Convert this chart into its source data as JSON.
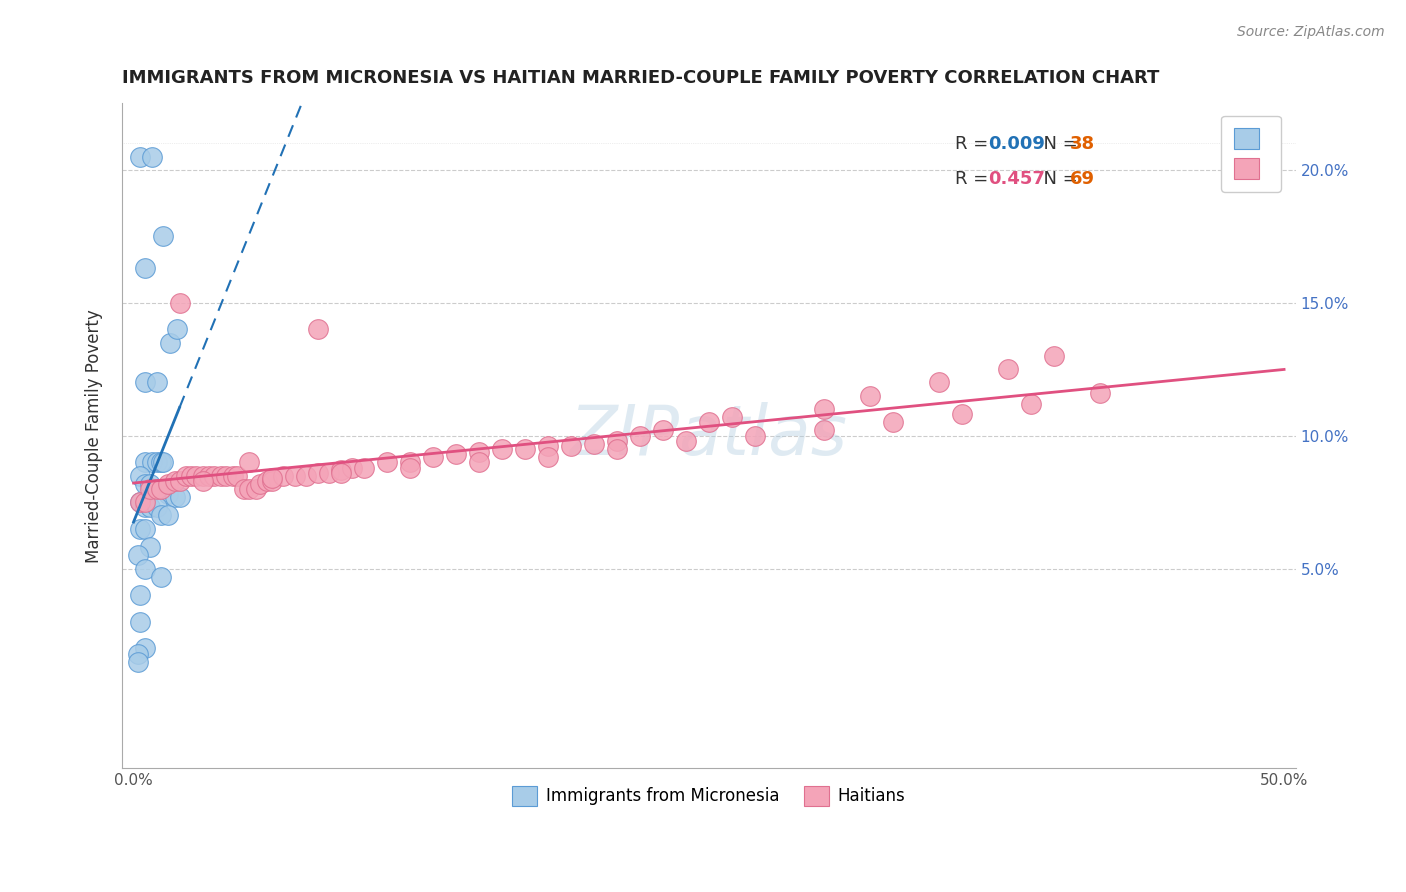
{
  "title": "IMMIGRANTS FROM MICRONESIA VS HAITIAN MARRIED-COUPLE FAMILY POVERTY CORRELATION CHART",
  "source": "Source: ZipAtlas.com",
  "ylabel": "Married-Couple Family Poverty",
  "watermark": "ZIPatlas",
  "legend1_label": "Immigrants from Micronesia",
  "legend2_label": "Haitians",
  "r1": "0.009",
  "n1": "38",
  "r2": "0.457",
  "n2": "69",
  "color_blue_fill": "#a8cce8",
  "color_blue_edge": "#5b9bd5",
  "color_pink_fill": "#f4a4b8",
  "color_pink_edge": "#e07090",
  "color_line_blue": "#2171b5",
  "color_line_pink": "#e05080",
  "color_rtext_blue": "#2171b5",
  "color_rtext_pink": "#e05080",
  "color_ntext": "#e06000",
  "ytick_color": "#4472c4",
  "xlim": [
    -0.005,
    0.505
  ],
  "ylim": [
    -0.025,
    0.225
  ],
  "yticks": [
    0.05,
    0.1,
    0.15,
    0.2
  ],
  "ytick_labels": [
    "5.0%",
    "10.0%",
    "15.0%",
    "20.0%"
  ],
  "xticks": [
    0.0,
    0.1,
    0.2,
    0.3,
    0.4,
    0.5
  ],
  "xtick_labels": [
    "0.0%",
    "",
    "",
    "",
    "",
    "50.0%"
  ],
  "micronesia_x": [
    0.003,
    0.008,
    0.013,
    0.016,
    0.005,
    0.01,
    0.005,
    0.019,
    0.005,
    0.008,
    0.01,
    0.012,
    0.013,
    0.003,
    0.005,
    0.007,
    0.01,
    0.012,
    0.015,
    0.018,
    0.02,
    0.003,
    0.005,
    0.007,
    0.01,
    0.012,
    0.015,
    0.003,
    0.005,
    0.007,
    0.002,
    0.005,
    0.012,
    0.003,
    0.003,
    0.005,
    0.002,
    0.002
  ],
  "micronesia_y": [
    0.205,
    0.205,
    0.175,
    0.135,
    0.12,
    0.12,
    0.163,
    0.14,
    0.09,
    0.09,
    0.09,
    0.09,
    0.09,
    0.085,
    0.082,
    0.082,
    0.08,
    0.08,
    0.078,
    0.077,
    0.077,
    0.075,
    0.073,
    0.073,
    0.073,
    0.07,
    0.07,
    0.065,
    0.065,
    0.058,
    0.055,
    0.05,
    0.047,
    0.04,
    0.03,
    0.02,
    0.018,
    0.015
  ],
  "haitians_x": [
    0.003,
    0.005,
    0.007,
    0.01,
    0.012,
    0.015,
    0.018,
    0.02,
    0.023,
    0.025,
    0.027,
    0.03,
    0.033,
    0.035,
    0.038,
    0.04,
    0.043,
    0.045,
    0.048,
    0.05,
    0.053,
    0.055,
    0.058,
    0.06,
    0.065,
    0.07,
    0.075,
    0.08,
    0.085,
    0.09,
    0.095,
    0.1,
    0.11,
    0.12,
    0.13,
    0.14,
    0.15,
    0.16,
    0.17,
    0.18,
    0.19,
    0.2,
    0.21,
    0.22,
    0.23,
    0.25,
    0.26,
    0.3,
    0.32,
    0.35,
    0.38,
    0.4,
    0.03,
    0.06,
    0.09,
    0.12,
    0.15,
    0.18,
    0.21,
    0.24,
    0.27,
    0.3,
    0.33,
    0.36,
    0.39,
    0.42,
    0.02,
    0.05,
    0.08
  ],
  "haitians_y": [
    0.075,
    0.075,
    0.08,
    0.08,
    0.08,
    0.082,
    0.083,
    0.083,
    0.085,
    0.085,
    0.085,
    0.085,
    0.085,
    0.085,
    0.085,
    0.085,
    0.085,
    0.085,
    0.08,
    0.08,
    0.08,
    0.082,
    0.083,
    0.083,
    0.085,
    0.085,
    0.085,
    0.086,
    0.086,
    0.087,
    0.088,
    0.088,
    0.09,
    0.09,
    0.092,
    0.093,
    0.094,
    0.095,
    0.095,
    0.096,
    0.096,
    0.097,
    0.098,
    0.1,
    0.102,
    0.105,
    0.107,
    0.11,
    0.115,
    0.12,
    0.125,
    0.13,
    0.083,
    0.084,
    0.086,
    0.088,
    0.09,
    0.092,
    0.095,
    0.098,
    0.1,
    0.102,
    0.105,
    0.108,
    0.112,
    0.116,
    0.15,
    0.09,
    0.14
  ]
}
